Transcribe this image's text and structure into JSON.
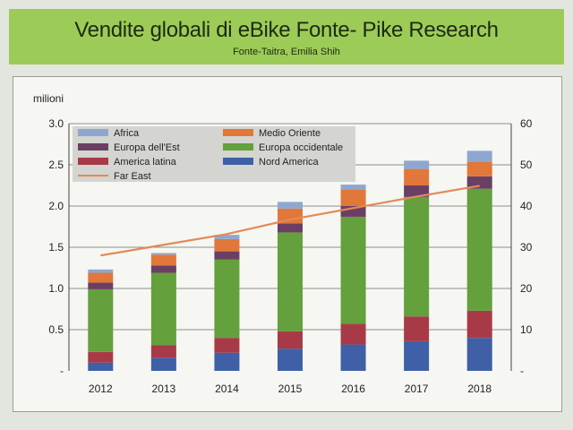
{
  "header": {
    "title": "Vendite globali di eBike Fonte- Pike Research",
    "subtitle": "Fonte-Taitra, Emilia Shih"
  },
  "chart_data": {
    "type": "bar",
    "stacked": true,
    "title": "Vendite globali di eBike Fonte- Pike Research",
    "subtitle": "Fonte-Taitra, Emilia Shih",
    "ylabel": "milioni",
    "categories": [
      "2012",
      "2013",
      "2014",
      "2015",
      "2016",
      "2017",
      "2018"
    ],
    "ylim": [
      0,
      3.0
    ],
    "yticks": [
      "-",
      "0.5",
      "1.0",
      "1.5",
      "2.0",
      "2.5",
      "3.0"
    ],
    "y2lim": [
      0,
      60
    ],
    "y2ticks": [
      "-",
      "10",
      "20",
      "30",
      "40",
      "50",
      "60"
    ],
    "grid": true,
    "legend_position": "top-left",
    "series": [
      {
        "name": "Nord America",
        "color": "#3f5fa6",
        "values": [
          0.1,
          0.16,
          0.22,
          0.27,
          0.32,
          0.36,
          0.4
        ]
      },
      {
        "name": "America latina",
        "color": "#a83a48",
        "values": [
          0.13,
          0.15,
          0.18,
          0.21,
          0.25,
          0.3,
          0.33
        ]
      },
      {
        "name": "Europa occidentale",
        "color": "#64a03c",
        "values": [
          0.76,
          0.88,
          0.95,
          1.2,
          1.3,
          1.45,
          1.48
        ]
      },
      {
        "name": "Europa dell'Est",
        "color": "#6b3f64",
        "values": [
          0.08,
          0.09,
          0.1,
          0.11,
          0.13,
          0.14,
          0.15
        ]
      },
      {
        "name": "Medio Oriente",
        "color": "#e2773a",
        "values": [
          0.12,
          0.13,
          0.15,
          0.18,
          0.2,
          0.2,
          0.18
        ]
      },
      {
        "name": "Africa",
        "color": "#8ea7d0",
        "values": [
          0.04,
          0.02,
          0.05,
          0.08,
          0.06,
          0.1,
          0.13
        ]
      },
      {
        "name": "Far East",
        "type": "line",
        "axis": "right",
        "color": "#e28a58",
        "values": [
          28.0,
          30.6,
          33.2,
          36.7,
          39.5,
          42.3,
          44.9
        ]
      }
    ],
    "legend": [
      {
        "name": "Africa",
        "color": "#8ea7d0"
      },
      {
        "name": "Medio Oriente",
        "color": "#e2773a"
      },
      {
        "name": "Europa dell'Est",
        "color": "#6b3f64"
      },
      {
        "name": "Europa occidentale",
        "color": "#64a03c"
      },
      {
        "name": "America latina",
        "color": "#a83a48"
      },
      {
        "name": "Nord America",
        "color": "#3f5fa6"
      },
      {
        "name": "Far East",
        "color": "#e28a58",
        "line": true
      }
    ]
  }
}
